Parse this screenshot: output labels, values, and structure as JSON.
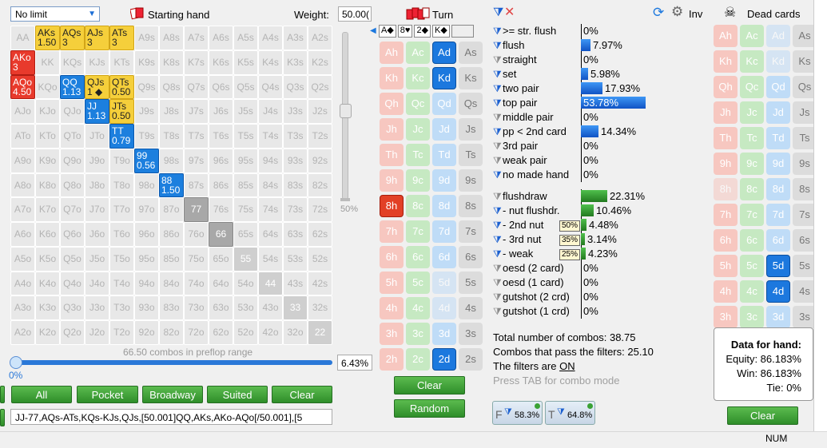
{
  "toolbar": {
    "limit_select": "No limit",
    "starting_hand": "Starting hand",
    "weight_label": "Weight:",
    "weight_value": "50.00(",
    "turn_label": "Turn",
    "inv_label": "Inv",
    "dead_label": "Dead cards"
  },
  "grid": {
    "rows": [
      [
        {
          "t": "AA"
        },
        {
          "t": "AKs",
          "s": "1.50",
          "c": "yellow"
        },
        {
          "t": "AQs",
          "s": "3",
          "c": "yellow"
        },
        {
          "t": "AJs",
          "s": "3",
          "c": "yellow"
        },
        {
          "t": "ATs",
          "s": "3",
          "c": "yellow"
        },
        {
          "t": "A9s"
        },
        {
          "t": "A8s"
        },
        {
          "t": "A7s"
        },
        {
          "t": "A6s"
        },
        {
          "t": "A5s"
        },
        {
          "t": "A4s"
        },
        {
          "t": "A3s"
        },
        {
          "t": "A2s"
        }
      ],
      [
        {
          "t": "AKo",
          "s": "3",
          "c": "red"
        },
        {
          "t": "KK"
        },
        {
          "t": "KQs"
        },
        {
          "t": "KJs"
        },
        {
          "t": "KTs"
        },
        {
          "t": "K9s"
        },
        {
          "t": "K8s"
        },
        {
          "t": "K7s"
        },
        {
          "t": "K6s"
        },
        {
          "t": "K5s"
        },
        {
          "t": "K4s"
        },
        {
          "t": "K3s"
        },
        {
          "t": "K2s"
        }
      ],
      [
        {
          "t": "AQo",
          "s": "4.50",
          "c": "red"
        },
        {
          "t": "KQo"
        },
        {
          "t": "QQ",
          "s": "1.13",
          "c": "blue"
        },
        {
          "t": "QJs",
          "s": "1 ◆",
          "c": "yellow"
        },
        {
          "t": "QTs",
          "s": "0.50",
          "c": "yellow"
        },
        {
          "t": "Q9s"
        },
        {
          "t": "Q8s"
        },
        {
          "t": "Q7s"
        },
        {
          "t": "Q6s"
        },
        {
          "t": "Q5s"
        },
        {
          "t": "Q4s"
        },
        {
          "t": "Q3s"
        },
        {
          "t": "Q2s"
        }
      ],
      [
        {
          "t": "AJo"
        },
        {
          "t": "KJo"
        },
        {
          "t": "QJo"
        },
        {
          "t": "JJ",
          "s": "1.13",
          "c": "blue"
        },
        {
          "t": "JTs",
          "s": "0.50",
          "c": "yellow"
        },
        {
          "t": "J9s"
        },
        {
          "t": "J8s"
        },
        {
          "t": "J7s"
        },
        {
          "t": "J6s"
        },
        {
          "t": "J5s"
        },
        {
          "t": "J4s"
        },
        {
          "t": "J3s"
        },
        {
          "t": "J2s"
        }
      ],
      [
        {
          "t": "ATo"
        },
        {
          "t": "KTo"
        },
        {
          "t": "QTo"
        },
        {
          "t": "JTo"
        },
        {
          "t": "TT",
          "s": "0.79",
          "c": "blue"
        },
        {
          "t": "T9s"
        },
        {
          "t": "T8s"
        },
        {
          "t": "T7s"
        },
        {
          "t": "T6s"
        },
        {
          "t": "T5s"
        },
        {
          "t": "T4s"
        },
        {
          "t": "T3s"
        },
        {
          "t": "T2s"
        }
      ],
      [
        {
          "t": "A9o"
        },
        {
          "t": "K9o"
        },
        {
          "t": "Q9o"
        },
        {
          "t": "J9o"
        },
        {
          "t": "T9o"
        },
        {
          "t": "99",
          "s": "0.56",
          "c": "blue"
        },
        {
          "t": "98s"
        },
        {
          "t": "97s"
        },
        {
          "t": "96s"
        },
        {
          "t": "95s"
        },
        {
          "t": "94s"
        },
        {
          "t": "93s"
        },
        {
          "t": "92s"
        }
      ],
      [
        {
          "t": "A8o"
        },
        {
          "t": "K8o"
        },
        {
          "t": "Q8o"
        },
        {
          "t": "J8o"
        },
        {
          "t": "T8o"
        },
        {
          "t": "98o"
        },
        {
          "t": "88",
          "s": "1.50",
          "c": "blue"
        },
        {
          "t": "87s"
        },
        {
          "t": "86s"
        },
        {
          "t": "85s"
        },
        {
          "t": "84s"
        },
        {
          "t": "83s"
        },
        {
          "t": "82s"
        }
      ],
      [
        {
          "t": "A7o"
        },
        {
          "t": "K7o"
        },
        {
          "t": "Q7o"
        },
        {
          "t": "J7o"
        },
        {
          "t": "T7o"
        },
        {
          "t": "97o"
        },
        {
          "t": "87o"
        },
        {
          "t": "77",
          "c": "gray"
        },
        {
          "t": "76s"
        },
        {
          "t": "75s"
        },
        {
          "t": "74s"
        },
        {
          "t": "73s"
        },
        {
          "t": "72s"
        }
      ],
      [
        {
          "t": "A6o"
        },
        {
          "t": "K6o"
        },
        {
          "t": "Q6o"
        },
        {
          "t": "J6o"
        },
        {
          "t": "T6o"
        },
        {
          "t": "96o"
        },
        {
          "t": "86o"
        },
        {
          "t": "76o"
        },
        {
          "t": "66",
          "c": "gray"
        },
        {
          "t": "65s"
        },
        {
          "t": "64s"
        },
        {
          "t": "63s"
        },
        {
          "t": "62s"
        }
      ],
      [
        {
          "t": "A5o"
        },
        {
          "t": "K5o"
        },
        {
          "t": "Q5o"
        },
        {
          "t": "J5o"
        },
        {
          "t": "T5o"
        },
        {
          "t": "95o"
        },
        {
          "t": "85o"
        },
        {
          "t": "75o"
        },
        {
          "t": "65o"
        },
        {
          "t": "55",
          "c": "gray2"
        },
        {
          "t": "54s"
        },
        {
          "t": "53s"
        },
        {
          "t": "52s"
        }
      ],
      [
        {
          "t": "A4o"
        },
        {
          "t": "K4o"
        },
        {
          "t": "Q4o"
        },
        {
          "t": "J4o"
        },
        {
          "t": "T4o"
        },
        {
          "t": "94o"
        },
        {
          "t": "84o"
        },
        {
          "t": "74o"
        },
        {
          "t": "64o"
        },
        {
          "t": "54o"
        },
        {
          "t": "44",
          "c": "gray2"
        },
        {
          "t": "43s"
        },
        {
          "t": "42s"
        }
      ],
      [
        {
          "t": "A3o"
        },
        {
          "t": "K3o"
        },
        {
          "t": "Q3o"
        },
        {
          "t": "J3o"
        },
        {
          "t": "T3o"
        },
        {
          "t": "93o"
        },
        {
          "t": "83o"
        },
        {
          "t": "73o"
        },
        {
          "t": "63o"
        },
        {
          "t": "53o"
        },
        {
          "t": "43o"
        },
        {
          "t": "33",
          "c": "gray2"
        },
        {
          "t": "32s"
        }
      ],
      [
        {
          "t": "A2o"
        },
        {
          "t": "K2o"
        },
        {
          "t": "Q2o"
        },
        {
          "t": "J2o"
        },
        {
          "t": "T2o"
        },
        {
          "t": "92o"
        },
        {
          "t": "82o"
        },
        {
          "t": "72o"
        },
        {
          "t": "62o"
        },
        {
          "t": "52o"
        },
        {
          "t": "42o"
        },
        {
          "t": "32o"
        },
        {
          "t": "22",
          "c": "gray2"
        }
      ]
    ],
    "combo_label": "66.50 combos in preflop range",
    "slider_pct": "0%",
    "vslider_pct": "50%",
    "pct_box": "6.43%"
  },
  "buttons": {
    "all": "All",
    "pocket": "Pocket",
    "broadway": "Broadway",
    "suited": "Suited",
    "clear": "Clear"
  },
  "range_text": "JJ-77,AQs-ATs,KQs-KJs,QJs,[50.001]QQ,AKs,AKo-AQo[/50.001],[5",
  "board": {
    "pills": [
      "A◆",
      "8♥",
      "2◆",
      "K◆"
    ],
    "ranks": [
      "A",
      "K",
      "Q",
      "J",
      "T",
      "9",
      "8",
      "7",
      "6",
      "5",
      "4",
      "3",
      "2"
    ],
    "selected": {
      "Ad": "d",
      "Kd": "d",
      "8h": "h",
      "2d": "d"
    },
    "faded": [
      "5d",
      "4d"
    ],
    "clear": "Clear",
    "random": "Random"
  },
  "stats": {
    "rows": [
      {
        "label": ">= str. flush",
        "pct": "0%",
        "bar": 0,
        "type": "b",
        "f": "b"
      },
      {
        "label": "flush",
        "pct": "7.97%",
        "bar": 0.0797,
        "type": "b",
        "f": "b"
      },
      {
        "label": "straight",
        "pct": "0%",
        "bar": 0,
        "type": "b",
        "f": "g"
      },
      {
        "label": "set",
        "pct": "5.98%",
        "bar": 0.0598,
        "type": "b",
        "f": "b"
      },
      {
        "label": "two pair",
        "pct": "17.93%",
        "bar": 0.1793,
        "type": "b",
        "f": "b"
      },
      {
        "label": "top pair",
        "pct": "53.78%",
        "bar": 0.5378,
        "type": "b",
        "f": "b"
      },
      {
        "label": "middle pair",
        "pct": "0%",
        "bar": 0,
        "type": "b",
        "f": "g"
      },
      {
        "label": "pp < 2nd card",
        "pct": "14.34%",
        "bar": 0.1434,
        "type": "b",
        "f": "b"
      },
      {
        "label": "3rd pair",
        "pct": "0%",
        "bar": 0,
        "type": "b",
        "f": "g"
      },
      {
        "label": "weak pair",
        "pct": "0%",
        "bar": 0,
        "type": "b",
        "f": "g"
      },
      {
        "label": "no made hand",
        "pct": "0%",
        "bar": 0,
        "type": "b",
        "f": "b"
      }
    ],
    "draws": [
      {
        "label": "flushdraw",
        "pct": "22.31%",
        "bar": 0.2231,
        "f": "g"
      },
      {
        "label": "- nut flushdr.",
        "pct": "10.46%",
        "bar": 0.1046,
        "f": "b"
      },
      {
        "label": "- 2nd nut",
        "pct": "4.48%",
        "bar": 0.0448,
        "f": "b",
        "tag": "50%"
      },
      {
        "label": "- 3rd nut",
        "pct": "3.14%",
        "bar": 0.0314,
        "f": "b",
        "tag": "35%"
      },
      {
        "label": "- weak",
        "pct": "4.23%",
        "bar": 0.0423,
        "f": "b",
        "tag": "25%"
      },
      {
        "label": "oesd (2 card)",
        "pct": "0%",
        "bar": 0,
        "f": "g"
      },
      {
        "label": "oesd (1 card)",
        "pct": "0%",
        "bar": 0,
        "f": "g"
      },
      {
        "label": "gutshot (2 crd)",
        "pct": "0%",
        "bar": 0,
        "f": "g"
      },
      {
        "label": "gutshot (1 crd)",
        "pct": "0%",
        "bar": 0,
        "f": "g"
      }
    ],
    "total_combos": "Total number of combos: 38.75",
    "pass_combos": "Combos that pass the filters: 25.10",
    "filters_on_prefix": "The filters are ",
    "filters_on": "ON",
    "press_tab": "Press TAB for combo mode",
    "f_pct": "58.3%",
    "t_pct": "64.8%"
  },
  "dead": {
    "clear": "Clear",
    "selected": {
      "5d": "d",
      "4d": "d"
    },
    "faded": [
      "Ad",
      "Kd",
      "8h",
      "2d"
    ]
  },
  "hand_data": {
    "title": "Data for hand:",
    "equity": "Equity: 86.183%",
    "win": "Win: 86.183%",
    "tie": "Tie: 0%"
  },
  "status": {
    "num": "NUM"
  },
  "colors": {
    "accent": "#1c78de",
    "yellow": "#f5cf3b",
    "red": "#e83a2c",
    "green": "#3aa235"
  }
}
